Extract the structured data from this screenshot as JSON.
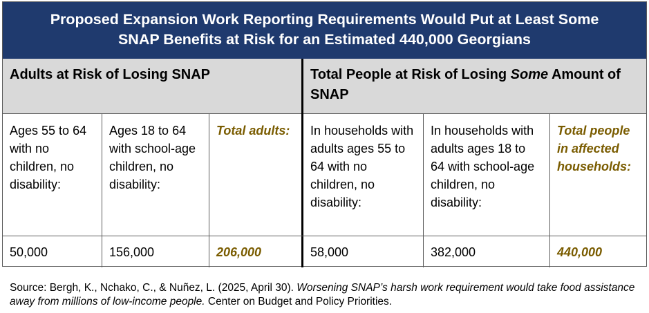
{
  "title": {
    "line1": "Proposed Expansion Work Reporting Requirements Would Put at Least Some",
    "line2": "SNAP Benefits at Risk for an Estimated 440,000 Georgians"
  },
  "left_header": "Adults at Risk of Losing SNAP",
  "right_header": {
    "part1": "Total People at Risk of Losing ",
    "italic": "Some",
    "part2": " Amount of SNAP"
  },
  "columns": [
    {
      "label": "Ages 55 to 64 with no children, no disability:",
      "value": "50,000",
      "highlight": false
    },
    {
      "label": "Ages 18 to 64 with school-age children, no disability:",
      "value": "156,000",
      "highlight": false
    },
    {
      "label": "Total adults:",
      "value": "206,000",
      "highlight": true
    },
    {
      "label": "In households with adults ages 55 to 64 with no children, no disability:",
      "value": "58,000",
      "highlight": false
    },
    {
      "label": "In households with adults ages 18 to 64 with school-age children, no disability:",
      "value": "382,000",
      "highlight": false
    },
    {
      "label": "Total people in affected households:",
      "value": "440,000",
      "highlight": true
    }
  ],
  "source": {
    "prefix": "Source: Bergh, K., Nchako, C., & Nuñez, L. (2025, April 30). ",
    "italic": "Worsening SNAP’s harsh work requirement would take food assistance away from millions of low-income people.",
    "suffix": " Center on Budget and Policy Priorities."
  },
  "colors": {
    "title_bg": "#1f3a6e",
    "header_bg": "#d9d9d9",
    "highlight_text": "#7a5c00"
  }
}
